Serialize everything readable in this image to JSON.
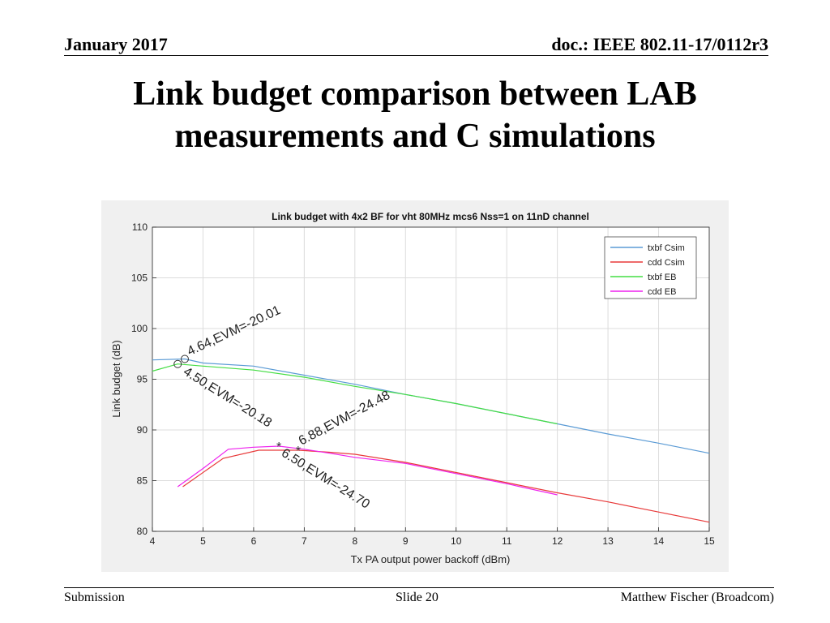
{
  "slide": {
    "date": "January 2017",
    "doc": "doc.: IEEE 802.11-17/0112r3",
    "title_line1": "Link budget comparison between LAB",
    "title_line2": "measurements and C simulations",
    "footer_left": "Submission",
    "footer_center": "Slide 20",
    "footer_right": "Matthew Fischer (Broadcom)"
  },
  "chart_data": {
    "type": "line",
    "title": "Link budget with 4x2 BF for vht 80MHz mcs6 Nss=1 on 11nD channel",
    "xlabel": "Tx PA output power backoff (dBm)",
    "ylabel": "Link budget (dB)",
    "xlim": [
      4,
      15
    ],
    "ylim": [
      80,
      110
    ],
    "xticks": [
      4,
      5,
      6,
      7,
      8,
      9,
      10,
      11,
      12,
      13,
      14,
      15
    ],
    "yticks": [
      80,
      85,
      90,
      95,
      100,
      105,
      110
    ],
    "grid": true,
    "legend_position": "top-right",
    "colors": {
      "txbf_csim": "#5b9bd5",
      "cdd_csim": "#e83a3a",
      "txbf_eb": "#44dd44",
      "cdd_eb": "#ee22ee",
      "marker": "#333333",
      "plot_bg": "#ffffff",
      "grid": "#dcdcdc"
    },
    "series": [
      {
        "name": "txbf Csim",
        "color_key": "txbf_csim",
        "x": [
          4,
          4.64,
          5,
          6,
          7,
          8,
          9,
          10,
          11,
          12,
          13,
          14,
          15
        ],
        "y": [
          96.9,
          97.0,
          96.6,
          96.3,
          95.4,
          94.5,
          93.5,
          92.6,
          91.6,
          90.6,
          89.6,
          88.7,
          87.7
        ]
      },
      {
        "name": "cdd Csim",
        "color_key": "cdd_csim",
        "x": [
          4.6,
          5.4,
          6.1,
          6.5,
          6.88,
          7.5,
          8,
          9,
          10,
          11,
          12,
          13,
          14,
          15
        ],
        "y": [
          84.4,
          87.2,
          88.0,
          88.0,
          88.0,
          87.8,
          87.6,
          86.8,
          85.8,
          84.8,
          83.8,
          82.9,
          81.9,
          80.9
        ]
      },
      {
        "name": "txbf EB",
        "color_key": "txbf_eb",
        "x": [
          4,
          4.5,
          5,
          6,
          7,
          8,
          9,
          10,
          11,
          12
        ],
        "y": [
          95.8,
          96.5,
          96.3,
          95.9,
          95.2,
          94.3,
          93.5,
          92.6,
          91.6,
          90.6
        ]
      },
      {
        "name": "cdd EB",
        "color_key": "cdd_eb",
        "x": [
          4.5,
          5,
          5.5,
          6,
          6.5,
          7,
          7.5,
          8,
          9,
          10,
          11,
          12
        ],
        "y": [
          84.4,
          86.2,
          88.1,
          88.3,
          88.4,
          88.1,
          87.7,
          87.3,
          86.7,
          85.7,
          84.7,
          83.6
        ]
      }
    ],
    "annotations": [
      {
        "text": "4.64,EVM=-20.01",
        "x": 4.64,
        "y": 97.0,
        "marker": "o"
      },
      {
        "text": "4.50,EVM=-20.18",
        "x": 4.5,
        "y": 96.5,
        "marker": "o"
      },
      {
        "text": "6.88,EVM=-24.48",
        "x": 6.88,
        "y": 88.0,
        "marker": "*"
      },
      {
        "text": "6.50,EVM=-24.70",
        "x": 6.5,
        "y": 88.4,
        "marker": "*"
      }
    ]
  }
}
